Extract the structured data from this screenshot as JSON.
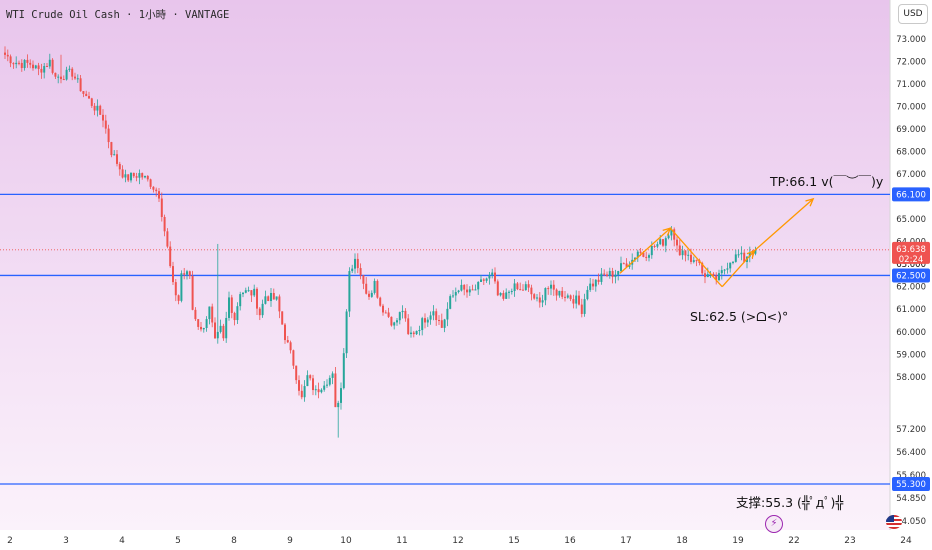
{
  "header": {
    "title": "WTI Crude Oil Cash · 1小時 · VANTAGE",
    "currency": "USD"
  },
  "annotations": {
    "tp": "TP:66.1 v(￣︶￣)y",
    "sl": "SL:62.5 (>ᗝ<)°",
    "support": "支撑:55.3 (╬ﾟдﾟ)╬"
  },
  "icons": {
    "events": "lightning-icon",
    "region": "us-flag-icon"
  },
  "colors": {
    "bg_top": "#e8c5ec",
    "bg_bottom": "#fbf2fb",
    "up": "#26a69a",
    "down": "#ef5350",
    "level": "#2962ff",
    "arrow": "#ff9800"
  },
  "chart_data": {
    "type": "candlestick",
    "ylim": [
      54.0,
      73.5
    ],
    "y_ticks": [
      "73.000",
      "72.000",
      "71.000",
      "70.000",
      "69.000",
      "68.000",
      "67.000",
      "66.000",
      "65.000",
      "64.000",
      "63.000",
      "62.000",
      "61.000",
      "60.000",
      "59.000",
      "58.000",
      "57.200",
      "56.400",
      "55.600",
      "54.850",
      "54.050"
    ],
    "x_ticks": [
      {
        "label": "2",
        "bar": 0
      },
      {
        "label": "3",
        "bar": 20
      },
      {
        "label": "4",
        "bar": 40
      },
      {
        "label": "5",
        "bar": 60
      },
      {
        "label": "8",
        "bar": 80
      },
      {
        "label": "9",
        "bar": 100
      },
      {
        "label": "10",
        "bar": 120
      },
      {
        "label": "11",
        "bar": 140
      },
      {
        "label": "12",
        "bar": 160
      },
      {
        "label": "15",
        "bar": 180
      },
      {
        "label": "16",
        "bar": 200
      },
      {
        "label": "17",
        "bar": 220
      },
      {
        "label": "18",
        "bar": 240
      },
      {
        "label": "19",
        "bar": 260
      },
      {
        "label": "22",
        "bar": 280
      },
      {
        "label": "23",
        "bar": 300
      },
      {
        "label": "24",
        "bar": 320
      }
    ],
    "horizontal_levels": [
      {
        "value": 66.1,
        "label": "66.100"
      },
      {
        "value": 62.5,
        "label": "62.500"
      },
      {
        "value": 55.3,
        "label": "55.300"
      }
    ],
    "current_price": {
      "value": 63.638,
      "label": "63.638",
      "timer": "02:24"
    },
    "price_line_extra": "63.000",
    "anchors": [
      [
        0,
        72.3
      ],
      [
        3,
        72.0
      ],
      [
        6,
        71.9
      ],
      [
        9,
        71.9
      ],
      [
        12,
        71.6
      ],
      [
        16,
        72.0
      ],
      [
        18,
        71.3
      ],
      [
        24,
        71.5
      ],
      [
        28,
        70.6
      ],
      [
        35,
        69.5
      ],
      [
        38,
        68.0
      ],
      [
        43,
        66.8
      ],
      [
        48,
        67.0
      ],
      [
        52,
        66.6
      ],
      [
        55,
        66.1
      ],
      [
        57,
        64.5
      ],
      [
        58,
        63.7
      ],
      [
        60,
        62.0
      ],
      [
        62,
        61.4
      ],
      [
        63,
        62.6
      ],
      [
        66,
        62.5
      ],
      [
        67,
        61.0
      ],
      [
        70,
        60.0
      ],
      [
        73,
        61.0
      ],
      [
        75,
        59.5
      ],
      [
        77,
        60.1
      ],
      [
        78,
        59.6
      ],
      [
        80,
        61.5
      ],
      [
        82,
        60.6
      ],
      [
        84,
        61.8
      ],
      [
        89,
        61.7
      ],
      [
        91,
        60.8
      ],
      [
        93,
        61.6
      ],
      [
        97,
        61.4
      ],
      [
        100,
        59.8
      ],
      [
        103,
        58.6
      ],
      [
        106,
        57.0
      ],
      [
        108,
        58.0
      ],
      [
        111,
        57.3
      ],
      [
        114,
        57.8
      ],
      [
        117,
        58.0
      ],
      [
        118,
        56.5
      ],
      [
        120,
        57.5
      ],
      [
        122,
        61.0
      ],
      [
        123,
        62.7
      ],
      [
        125,
        63.3
      ],
      [
        127,
        62.6
      ],
      [
        128,
        62.0
      ],
      [
        130,
        61.7
      ],
      [
        132,
        62.2
      ],
      [
        134,
        61.2
      ],
      [
        137,
        60.7
      ],
      [
        139,
        60.3
      ],
      [
        142,
        61.0
      ],
      [
        144,
        59.8
      ],
      [
        147,
        60.1
      ],
      [
        150,
        60.6
      ],
      [
        153,
        61.0
      ],
      [
        156,
        60.2
      ],
      [
        159,
        61.4
      ],
      [
        162,
        62.0
      ],
      [
        164,
        61.8
      ],
      [
        166,
        61.7
      ],
      [
        169,
        62.0
      ],
      [
        171,
        62.3
      ],
      [
        174,
        62.5
      ],
      [
        176,
        61.6
      ],
      [
        178,
        61.4
      ],
      [
        181,
        62.0
      ],
      [
        184,
        61.8
      ],
      [
        186,
        62.0
      ],
      [
        189,
        61.5
      ],
      [
        191,
        61.2
      ],
      [
        193,
        62.0
      ],
      [
        196,
        61.8
      ],
      [
        199,
        61.7
      ],
      [
        201,
        61.6
      ],
      [
        204,
        61.4
      ],
      [
        206,
        61.0
      ],
      [
        208,
        62.0
      ],
      [
        211,
        62.2
      ],
      [
        214,
        62.5
      ],
      [
        218,
        62.6
      ],
      [
        221,
        63.0
      ],
      [
        224,
        63.2
      ],
      [
        226,
        63.6
      ],
      [
        228,
        63.4
      ],
      [
        232,
        63.8
      ],
      [
        235,
        64.0
      ],
      [
        237,
        64.4
      ],
      [
        238,
        64.6
      ],
      [
        240,
        64.0
      ],
      [
        241,
        63.3
      ],
      [
        243,
        63.6
      ],
      [
        245,
        63.2
      ],
      [
        247,
        63.3
      ],
      [
        249,
        62.6
      ],
      [
        251,
        62.5
      ],
      [
        253,
        62.3
      ],
      [
        255,
        62.4
      ],
      [
        257,
        62.8
      ],
      [
        259,
        63.2
      ],
      [
        262,
        63.4
      ],
      [
        264,
        63.2
      ],
      [
        266,
        63.6
      ],
      [
        268,
        63.638
      ]
    ],
    "wick_spikes": [
      [
        76,
        63.9
      ],
      [
        119,
        55.3
      ],
      [
        20,
        72.3
      ]
    ]
  }
}
